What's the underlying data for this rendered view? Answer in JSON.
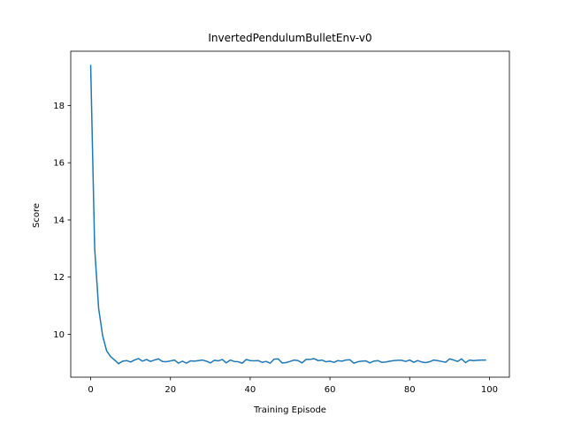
{
  "chart_data": {
    "type": "line",
    "title": "InvertedPendulumBulletEnv-v0",
    "xlabel": "Training Episode",
    "ylabel": "Score",
    "xlim": [
      -5,
      105
    ],
    "ylim": [
      8.5,
      19.9
    ],
    "xticks": [
      0,
      20,
      40,
      60,
      80,
      100
    ],
    "yticks": [
      10,
      12,
      14,
      16,
      18
    ],
    "grid": false,
    "line_color": "#1f77b4",
    "series": [
      {
        "x": [
          0,
          1,
          2,
          3,
          4,
          5,
          6,
          7,
          8,
          9,
          10,
          11,
          12,
          13,
          14,
          15,
          16,
          17,
          18,
          19,
          20,
          21,
          22,
          23,
          24,
          25,
          26,
          27,
          28,
          29,
          30,
          31,
          32,
          33,
          34,
          35,
          36,
          37,
          38,
          39,
          40,
          41,
          42,
          43,
          44,
          45,
          46,
          47,
          48,
          49,
          50,
          51,
          52,
          53,
          54,
          55,
          56,
          57,
          58,
          59,
          60,
          61,
          62,
          63,
          64,
          65,
          66,
          67,
          68,
          69,
          70,
          71,
          72,
          73,
          74,
          75,
          76,
          77,
          78,
          79,
          80,
          81,
          82,
          83,
          84,
          85,
          86,
          87,
          88,
          89,
          90,
          91,
          92,
          93,
          94,
          95,
          96,
          97,
          98,
          99
        ],
        "y": [
          19.4,
          13.0,
          10.9,
          9.95,
          9.42,
          9.22,
          9.1,
          8.97,
          9.06,
          9.08,
          9.03,
          9.1,
          9.15,
          9.06,
          9.12,
          9.05,
          9.1,
          9.14,
          9.05,
          9.04,
          9.07,
          9.1,
          8.99,
          9.06,
          8.99,
          9.07,
          9.06,
          9.08,
          9.1,
          9.06,
          9.0,
          9.09,
          9.07,
          9.12,
          9.0,
          9.1,
          9.05,
          9.04,
          8.99,
          9.12,
          9.08,
          9.07,
          9.08,
          9.02,
          9.05,
          8.99,
          9.13,
          9.14,
          9.0,
          9.01,
          9.05,
          9.1,
          9.08,
          9.0,
          9.12,
          9.12,
          9.15,
          9.08,
          9.1,
          9.04,
          9.06,
          9.02,
          9.08,
          9.06,
          9.1,
          9.11,
          8.99,
          9.04,
          9.06,
          9.07,
          9.0,
          9.06,
          9.08,
          9.02,
          9.03,
          9.06,
          9.08,
          9.09,
          9.09,
          9.05,
          9.1,
          9.02,
          9.08,
          9.03,
          9.01,
          9.04,
          9.1,
          9.08,
          9.05,
          9.02,
          9.14,
          9.1,
          9.05,
          9.14,
          9.01,
          9.1,
          9.08,
          9.09,
          9.1,
          9.1
        ]
      }
    ]
  }
}
